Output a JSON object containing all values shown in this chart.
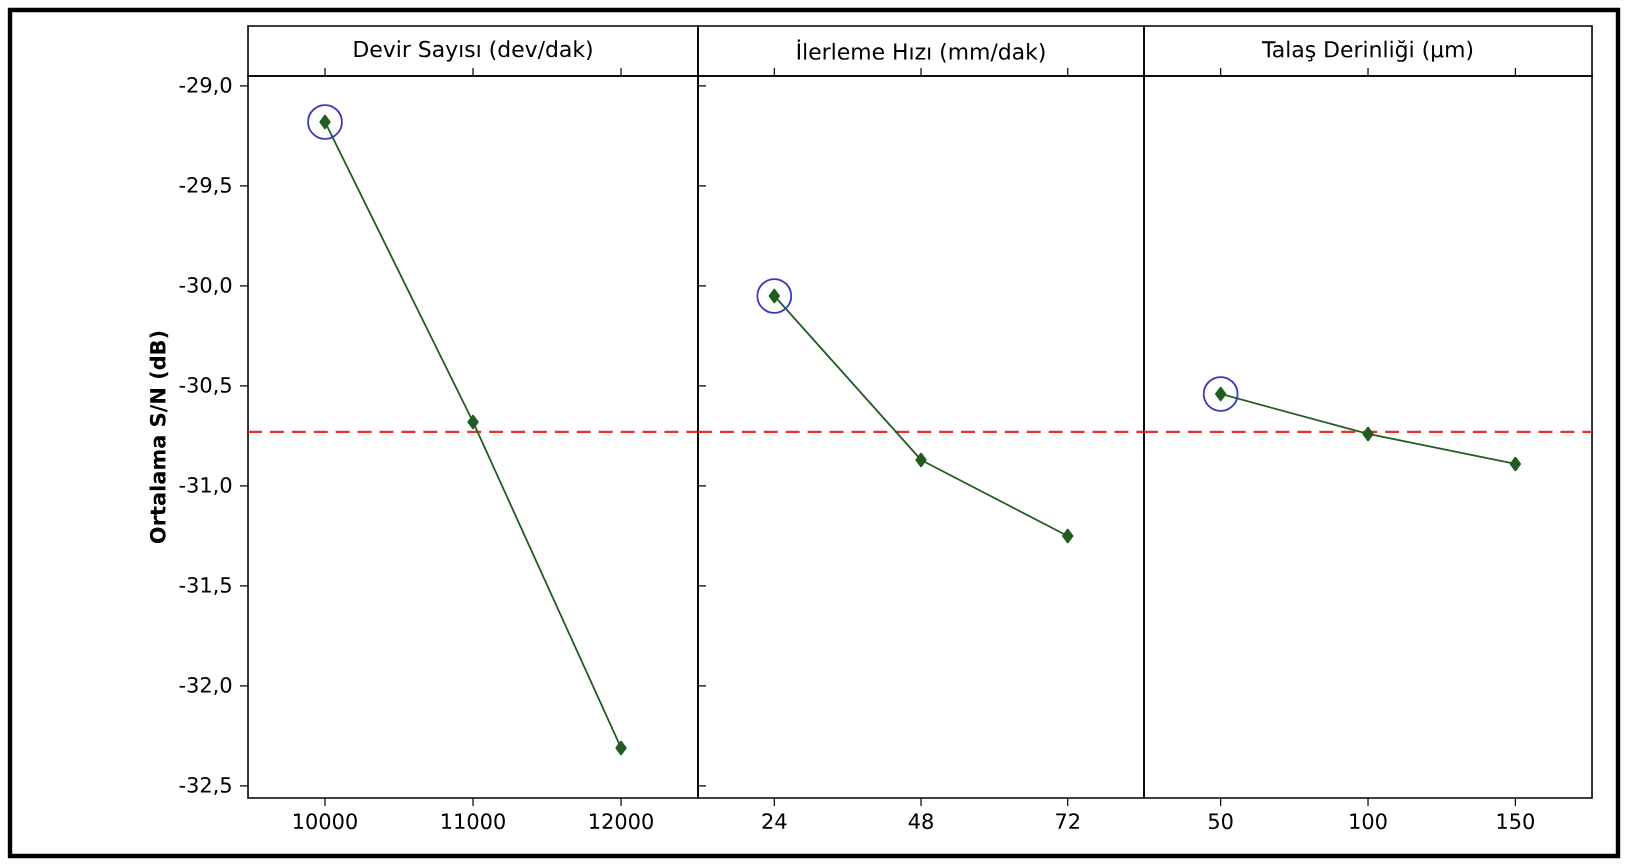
{
  "chart_data": [
    {
      "type": "line",
      "title": "Devir Sayısı (dev/dak)",
      "ylabel": "Ortalama S/N (dB)",
      "categories": [
        "10000",
        "11000",
        "12000"
      ],
      "ylim": [
        -32.56,
        -28.95
      ],
      "yticks": [
        {
          "value": -29.0,
          "label": "-29,0"
        },
        {
          "value": -29.5,
          "label": "-29,5"
        },
        {
          "value": -30.0,
          "label": "-30,0"
        },
        {
          "value": -30.5,
          "label": "-30,5"
        },
        {
          "value": -31.0,
          "label": "-31,0"
        },
        {
          "value": -31.5,
          "label": "-31,5"
        },
        {
          "value": -32.0,
          "label": "-32,0"
        },
        {
          "value": -32.5,
          "label": "-32,5"
        }
      ],
      "marker": "diamond",
      "line_style": "solid",
      "series": [
        {
          "color": "#235c23",
          "values": [
            -29.18,
            -30.68,
            -32.31
          ]
        },
        {
          "type": "scatter",
          "marker": "circle",
          "color": "#3b3bbf",
          "values": [
            -29.18,
            null,
            null
          ]
        }
      ],
      "ref_lines": [
        {
          "axis": "y",
          "value": -30.73,
          "color": "#e8312f",
          "line_style": "dashed"
        }
      ]
    },
    {
      "type": "line",
      "title": "İlerleme Hızı (mm/dak)",
      "categories": [
        "24",
        "48",
        "72"
      ],
      "ylim": [
        -32.56,
        -28.95
      ],
      "tick_labels": "x",
      "marker": "diamond",
      "line_style": "solid",
      "series": [
        {
          "color": "#235c23",
          "values": [
            -30.05,
            -30.87,
            -31.25
          ]
        },
        {
          "type": "scatter",
          "marker": "circle",
          "color": "#3b3bbf",
          "values": [
            -30.05,
            null,
            null
          ]
        }
      ],
      "ref_lines": [
        {
          "axis": "y",
          "value": -30.73,
          "color": "#e8312f",
          "line_style": "dashed"
        }
      ]
    },
    {
      "type": "line",
      "title": "Talaş Derinliği (µm)",
      "categories": [
        "50",
        "100",
        "150"
      ],
      "ylim": [
        -32.56,
        -28.95
      ],
      "tick_labels": "x",
      "marker": "diamond",
      "line_style": "solid",
      "series": [
        {
          "color": "#235c23",
          "values": [
            -30.54,
            -30.74,
            -30.89
          ]
        },
        {
          "type": "scatter",
          "marker": "circle",
          "color": "#3b3bbf",
          "values": [
            -30.54,
            null,
            null
          ]
        }
      ],
      "ref_lines": [
        {
          "axis": "y",
          "value": -30.73,
          "color": "#e8312f",
          "line_style": "dashed"
        }
      ]
    }
  ]
}
